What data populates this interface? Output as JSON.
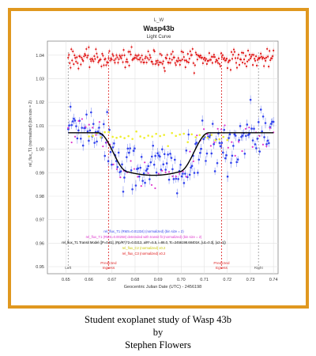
{
  "caption": {
    "line1": "Student exoplanet study of Wasp 43b",
    "line2": "by",
    "line3": "Stephen Flowers"
  },
  "chart_data": {
    "type": "scatter",
    "super_title": "L_W",
    "title": "Wasp43b",
    "subtitle": "Light Curve",
    "xlabel": "Geocentric Julian Date (UTC) - 2456198",
    "ylabel": "rel_flux_T1 (normalized) (bin size = 2)",
    "xlim": [
      0.642,
      0.742
    ],
    "ylim": [
      0.947,
      1.046
    ],
    "x_ticks": [
      0.65,
      0.66,
      0.67,
      0.68,
      0.69,
      0.7,
      0.71,
      0.72,
      0.73,
      0.74
    ],
    "y_ticks": [
      0.95,
      0.96,
      0.97,
      0.98,
      0.99,
      1.0,
      1.01,
      1.02,
      1.03,
      1.04
    ],
    "grid": true,
    "colors": {
      "data": "#3344ee",
      "detrended": "#dd33cc",
      "model": "#000000",
      "comparison": "#e01818",
      "residuals": "#eeee30",
      "markers": "#e03030",
      "bounds": "#888888",
      "frame": "#e0981f"
    },
    "vertical_markers": [
      {
        "label": "Left",
        "x": 0.651,
        "style": "bound"
      },
      {
        "label": "Predicted Ingress",
        "x": 0.6685,
        "style": "predicted"
      },
      {
        "label": "Predicted Egress",
        "x": 0.7175,
        "style": "predicted"
      },
      {
        "label": "Right",
        "x": 0.7335,
        "style": "bound"
      }
    ],
    "model": {
      "baseline": 1.007,
      "depth": 0.0181,
      "ingress_start": 0.664,
      "ingress_end": 0.677,
      "egress_start": 0.699,
      "egress_end": 0.712
    },
    "series": [
      {
        "name": "rel_flux_T1 (RMS=0.01334) (normalized) (bin size = 2)",
        "kind": "data",
        "x_start": 0.651,
        "x_end": 0.74,
        "points": 180,
        "noise": 0.0055
      },
      {
        "name": "rel_flux_T1 (RMS=0.00258) detrended with transit fit (normalized) (bin size = 2)",
        "kind": "detrended",
        "x_start": 0.651,
        "x_end": 0.74,
        "points": 60,
        "noise": 0.0045
      },
      {
        "name": "rel_flux_T1 Transit Model ([P=0.81], (Rp/R*)^2=0.0213, a/R*=5.5, i=86.0, Tc=2456198.68401K, [u1=0.3], [u2=1])",
        "kind": "model"
      },
      {
        "name": "rel_flux_C2 (normalized) x0.2",
        "kind": "residuals",
        "x_start": 0.66,
        "x_end": 0.72,
        "points": 36,
        "level": 1.0055,
        "noise": 0.0012
      },
      {
        "name": "rel_flux_C3 (normalized) x0.2",
        "kind": "comparison",
        "x_start": 0.651,
        "x_end": 0.74,
        "points": 260,
        "level": 1.0385,
        "noise": 0.0018
      }
    ]
  }
}
